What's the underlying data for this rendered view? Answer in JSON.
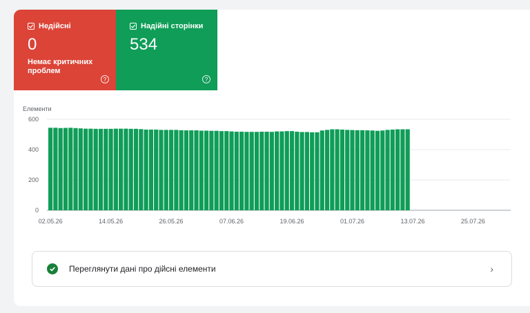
{
  "tiles": {
    "invalid": {
      "label": "Недійсні",
      "value": "0",
      "note": "Немає критичних проблем",
      "color": "#db4437"
    },
    "valid": {
      "label": "Надійні сторінки",
      "value": "534",
      "color": "#0f9d58"
    },
    "help_glyph": "?"
  },
  "chart_data": {
    "type": "bar",
    "ylabel": "Елементи",
    "ylim": [
      0,
      600
    ],
    "yticks": [
      0,
      200,
      400,
      600
    ],
    "x_tick_labels": [
      "02.05.26",
      "14.05.26",
      "26.05.26",
      "07.06.26",
      "19.06.26",
      "01.07.26",
      "13.07.26",
      "25.07.26"
    ],
    "x_tick_every": 12,
    "color": "#0f9d58",
    "values": [
      544,
      544,
      542,
      543,
      544,
      542,
      540,
      538,
      538,
      537,
      537,
      537,
      537,
      538,
      538,
      538,
      537,
      537,
      535,
      532,
      532,
      532,
      530,
      530,
      530,
      530,
      528,
      527,
      527,
      527,
      525,
      525,
      524,
      524,
      522,
      522,
      520,
      518,
      518,
      517,
      517,
      517,
      518,
      518,
      517,
      520,
      520,
      522,
      522,
      518,
      516,
      516,
      514,
      514,
      526,
      530,
      534,
      534,
      532,
      530,
      529,
      528,
      528,
      527,
      526,
      524,
      526,
      530,
      532,
      534,
      534,
      534
    ]
  },
  "link_row": {
    "label": "Переглянути дані про дійсні елементи",
    "chevron": "›"
  }
}
